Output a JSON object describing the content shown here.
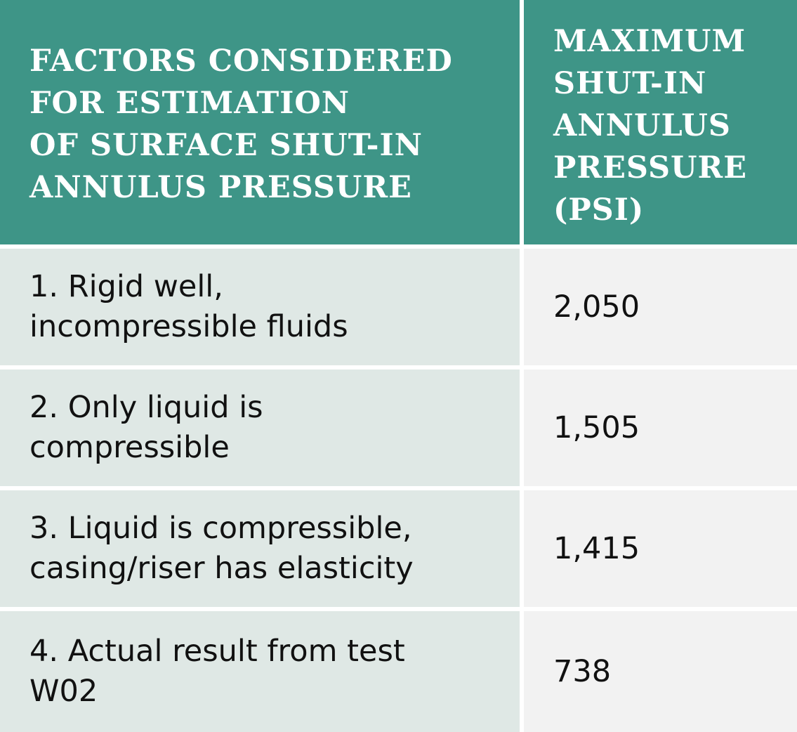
{
  "table": {
    "header": [
      "FACTORS CONSIDERED\nFOR ESTIMATION\nOF SURFACE SHUT-IN\nANNULUS PRESSURE",
      "MAXIMUM\nSHUT-IN\nANNULUS\nPRESSURE\n(PSI)"
    ],
    "rows": [
      [
        "1. Rigid well,\nincompressible fluids",
        "2,050"
      ],
      [
        "2. Only liquid is\ncompressible",
        "1,505"
      ],
      [
        "3. Liquid is compressible,\ncasing/riser has elasticity",
        "1,415"
      ],
      [
        "4. Actual result from test\nW02",
        "738"
      ]
    ]
  }
}
